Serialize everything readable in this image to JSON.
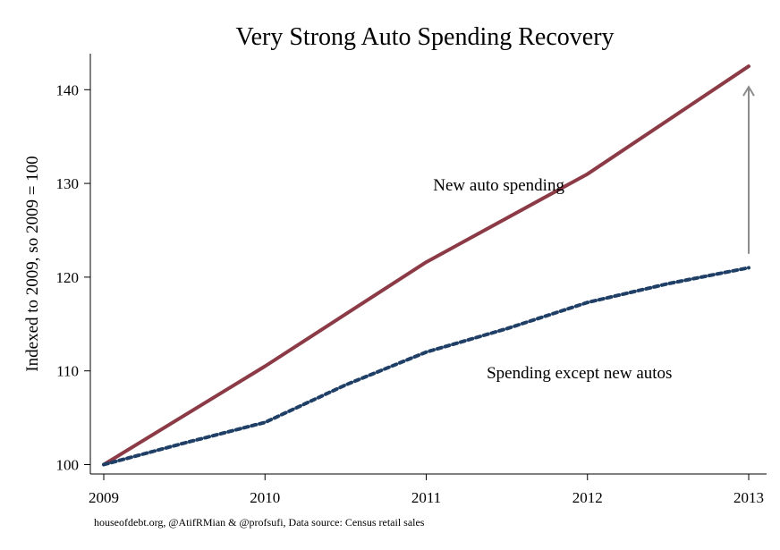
{
  "chart_data": {
    "type": "line",
    "title": "Very Strong Auto Spending Recovery",
    "ylabel": "Indexed to 2009, so 2009 = 100",
    "xlabel": "",
    "xlim": [
      2009,
      2013
    ],
    "ylim": [
      99,
      144
    ],
    "xticks": [
      2009,
      2010,
      2011,
      2012,
      2013
    ],
    "yticks": [
      100,
      110,
      120,
      130,
      140
    ],
    "grid": false,
    "legend": "none",
    "series": [
      {
        "label": "New auto spending",
        "color": "#8b3a46",
        "style": "solid",
        "x": [
          2009,
          2010,
          2011,
          2012,
          2013
        ],
        "y": [
          100,
          110.5,
          121.6,
          131,
          142.5
        ]
      },
      {
        "label": "Spending except new autos",
        "color": "#1f3f66",
        "style": "dashed",
        "x": [
          2009,
          2009.5,
          2010,
          2010.5,
          2011,
          2011.5,
          2012,
          2012.5,
          2013
        ],
        "y": [
          100,
          102.3,
          104.5,
          108.5,
          112,
          114.5,
          117.3,
          119.3,
          121
        ]
      }
    ],
    "annotations": [
      {
        "text": "New auto spending",
        "x": 2011.5,
        "y": 129.8
      },
      {
        "text": "Spending except new autos",
        "x": 2012.0,
        "y": 109.8
      }
    ],
    "arrow": {
      "x": 2013,
      "y_from": 122.5,
      "y_to": 140.3,
      "color": "#8c8c8c"
    },
    "source": "houseofdebt.org, @AtifRMian & @profsufi, Data source: Census retail sales"
  }
}
